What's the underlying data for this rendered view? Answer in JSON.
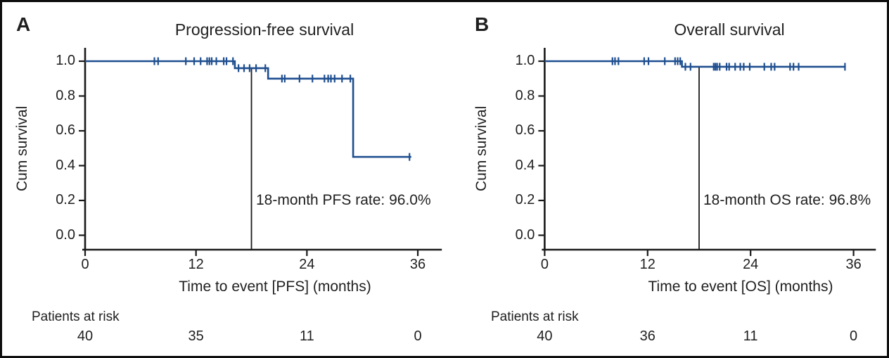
{
  "figure": {
    "background": "#ffffff",
    "border_color": "#0e0e0e",
    "text_color": "#1f1f1f",
    "axis_color": "#1a1a1a"
  },
  "chart_data": [
    {
      "type": "line",
      "subtype": "kaplan-meier-step",
      "panel_label": "A",
      "title": "Progression-free survival",
      "xlabel": "Time to event [PFS] (months)",
      "ylabel": "Cum survival",
      "xlim": [
        0,
        38
      ],
      "ylim": [
        0.0,
        1.0
      ],
      "grid": false,
      "legend": "none",
      "x_ticks": [
        0,
        12,
        24,
        36
      ],
      "x_tick_labels": [
        "0",
        "12",
        "24",
        "36"
      ],
      "y_ticks": [
        1.0,
        0.8,
        0.6,
        0.4,
        0.2,
        0.0
      ],
      "y_tick_labels": [
        "1.0",
        "0.8",
        "0.6",
        "0.4",
        "0.2",
        "0.0"
      ],
      "steps": [
        [
          0,
          1.0
        ],
        [
          16.2,
          1.0
        ],
        [
          16.2,
          0.96
        ],
        [
          19.8,
          0.96
        ],
        [
          19.8,
          0.9
        ],
        [
          29.0,
          0.9
        ],
        [
          29.0,
          0.45
        ],
        [
          35.3,
          0.45
        ]
      ],
      "censors": [
        [
          7.5,
          1.0
        ],
        [
          7.9,
          1.0
        ],
        [
          10.9,
          1.0
        ],
        [
          11.8,
          1.0
        ],
        [
          12.5,
          1.0
        ],
        [
          13.2,
          1.0
        ],
        [
          13.45,
          1.0
        ],
        [
          13.7,
          1.0
        ],
        [
          14.2,
          1.0
        ],
        [
          15.0,
          1.0
        ],
        [
          15.3,
          1.0
        ],
        [
          16.0,
          1.0
        ],
        [
          16.6,
          0.96
        ],
        [
          17.2,
          0.96
        ],
        [
          17.8,
          0.96
        ],
        [
          18.5,
          0.96
        ],
        [
          19.5,
          0.96
        ],
        [
          21.3,
          0.9
        ],
        [
          21.6,
          0.9
        ],
        [
          23.2,
          0.9
        ],
        [
          24.6,
          0.9
        ],
        [
          25.9,
          0.9
        ],
        [
          26.3,
          0.9
        ],
        [
          26.6,
          0.9
        ],
        [
          27.0,
          0.9
        ],
        [
          27.8,
          0.9
        ],
        [
          28.7,
          0.9
        ],
        [
          35.1,
          0.45
        ]
      ],
      "reference_month": 18,
      "annotation": "18-month PFS rate: 96.0%",
      "risk_label": "Patients at risk",
      "risk_values": [
        "40",
        "35",
        "11",
        "0"
      ],
      "curve_color": "#1e4e8f"
    },
    {
      "type": "line",
      "subtype": "kaplan-meier-step",
      "panel_label": "B",
      "title": "Overall survival",
      "xlabel": "Time to event [OS] (months)",
      "ylabel": "Cum survival",
      "xlim": [
        0,
        38
      ],
      "ylim": [
        0.0,
        1.0
      ],
      "grid": false,
      "legend": "none",
      "x_ticks": [
        0,
        12,
        24,
        36
      ],
      "x_tick_labels": [
        "0",
        "12",
        "24",
        "36"
      ],
      "y_ticks": [
        1.0,
        0.8,
        0.6,
        0.4,
        0.2,
        0.0
      ],
      "y_tick_labels": [
        "1.0",
        "0.8",
        "0.6",
        "0.4",
        "0.2",
        "0.0"
      ],
      "steps": [
        [
          0,
          1.0
        ],
        [
          16.0,
          1.0
        ],
        [
          16.0,
          0.968
        ],
        [
          35.1,
          0.968
        ]
      ],
      "censors": [
        [
          7.9,
          1.0
        ],
        [
          8.2,
          1.0
        ],
        [
          8.6,
          1.0
        ],
        [
          11.6,
          1.0
        ],
        [
          12.1,
          1.0
        ],
        [
          14.0,
          1.0
        ],
        [
          15.2,
          1.0
        ],
        [
          15.5,
          1.0
        ],
        [
          15.8,
          1.0
        ],
        [
          16.4,
          0.968
        ],
        [
          17.0,
          0.968
        ],
        [
          19.7,
          0.968
        ],
        [
          19.9,
          0.968
        ],
        [
          20.1,
          0.968
        ],
        [
          20.4,
          0.968
        ],
        [
          21.2,
          0.968
        ],
        [
          21.5,
          0.968
        ],
        [
          22.2,
          0.968
        ],
        [
          22.8,
          0.968
        ],
        [
          23.2,
          0.968
        ],
        [
          23.9,
          0.968
        ],
        [
          25.6,
          0.968
        ],
        [
          26.4,
          0.968
        ],
        [
          26.8,
          0.968
        ],
        [
          28.6,
          0.968
        ],
        [
          29.0,
          0.968
        ],
        [
          29.6,
          0.968
        ],
        [
          35.0,
          0.968
        ]
      ],
      "reference_month": 18,
      "annotation": "18-month OS rate: 96.8%",
      "risk_label": "Patients at risk",
      "risk_values": [
        "40",
        "36",
        "11",
        "0"
      ],
      "curve_color": "#1e4e8f"
    }
  ]
}
